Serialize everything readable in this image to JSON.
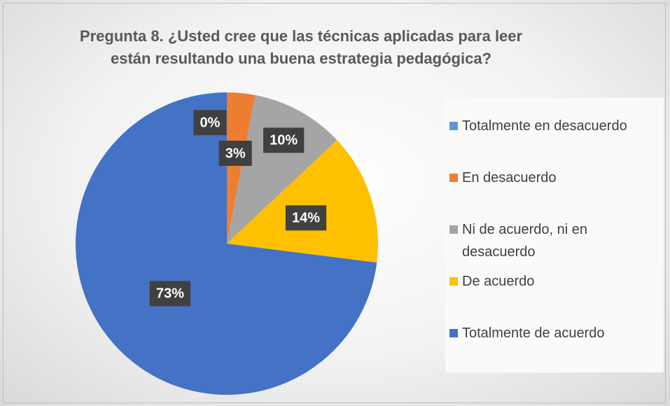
{
  "chart_data": {
    "type": "pie",
    "title": "Pregunta 8. ¿Usted cree que las técnicas aplicadas para leer están resultando una buena estrategia pedagógica?",
    "categories": [
      "Totalmente en desacuerdo",
      "En desacuerdo",
      "Ni de acuerdo, ni en desacuerdo",
      "De acuerdo",
      "Totalmente de acuerdo"
    ],
    "values": [
      0,
      3,
      10,
      14,
      73
    ],
    "value_labels": [
      "0%",
      "3%",
      "10%",
      "14%",
      "73%"
    ],
    "colors": [
      "#5b9bd5",
      "#ed7d31",
      "#a5a5a5",
      "#ffc000",
      "#4472c4"
    ],
    "legend": "right"
  }
}
